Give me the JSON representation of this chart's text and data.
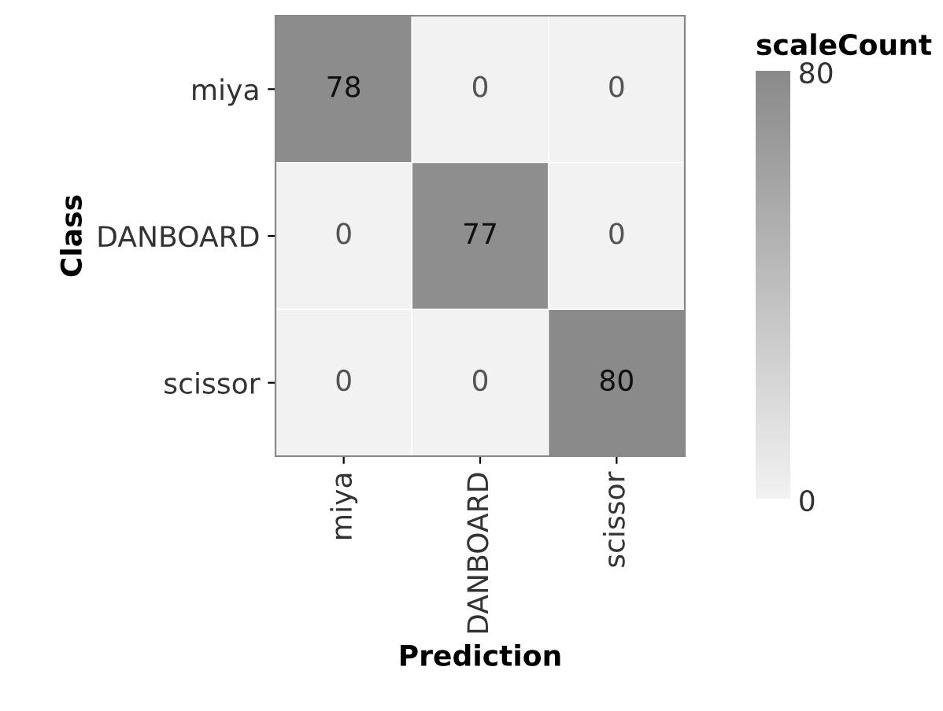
{
  "chart_data": {
    "type": "heatmap",
    "xlabel": "Prediction",
    "ylabel": "Class",
    "clabel": "scaleCount",
    "categories": [
      "miya",
      "DANBOARD",
      "scissor"
    ],
    "y_categories": [
      "miya",
      "DANBOARD",
      "scissor"
    ],
    "cells": [
      [
        78,
        0,
        0
      ],
      [
        0,
        77,
        0
      ],
      [
        0,
        0,
        80
      ]
    ],
    "data_labels": true,
    "clim": [
      0,
      80
    ],
    "cticks": [
      0,
      80
    ]
  }
}
